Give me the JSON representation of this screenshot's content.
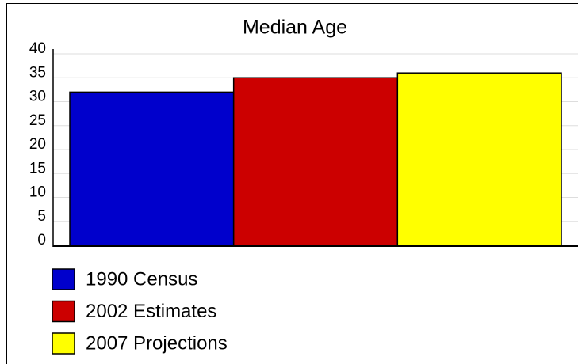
{
  "chart_data": {
    "type": "bar",
    "title": "Median Age",
    "series": [
      {
        "name": "1990 Census",
        "color": "#0000cc",
        "values": [
          32
        ]
      },
      {
        "name": "2002 Estimates",
        "color": "#cc0000",
        "values": [
          35
        ]
      },
      {
        "name": "2007 Projections",
        "color": "#ffff00",
        "values": [
          36
        ]
      }
    ],
    "ylim": [
      0,
      40
    ],
    "yticks": [
      0,
      5,
      10,
      15,
      20,
      25,
      30,
      35,
      40
    ],
    "grid": true,
    "legend": "bottom-left"
  }
}
